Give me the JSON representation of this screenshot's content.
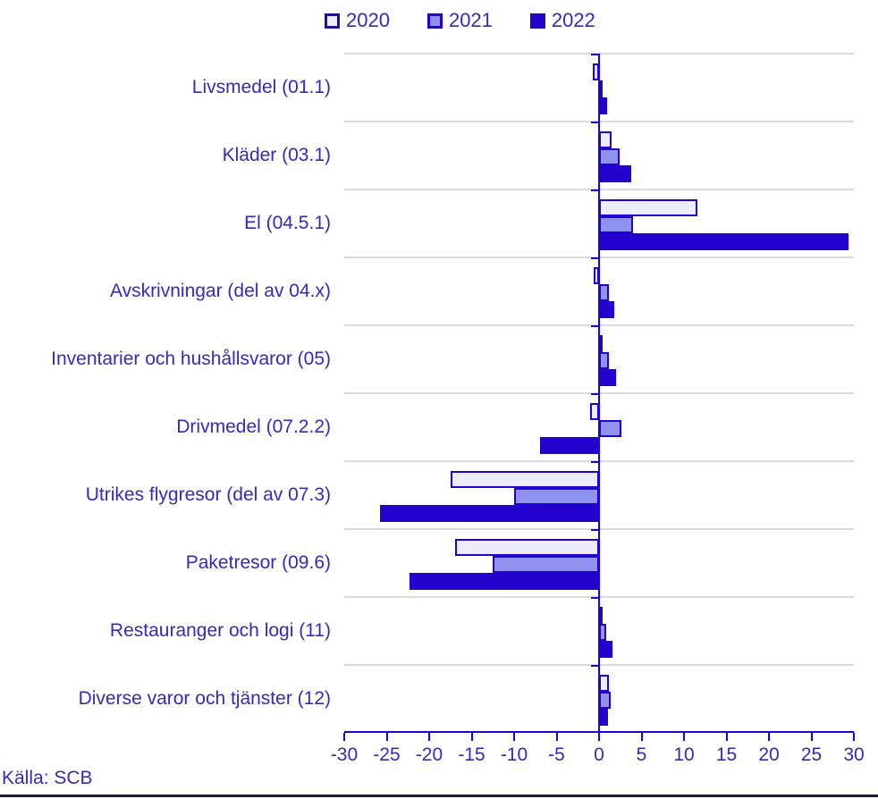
{
  "source": "Källa: SCB",
  "colors": {
    "accent_dark": "#2302cd",
    "series_2021_fill": "#8f92ee",
    "series_2020_fill": "#ecedfb",
    "text": "#3629bf",
    "gridline": "#d9d9d9",
    "bottom_rule": "#1a1a3e"
  },
  "chart_data": {
    "type": "bar",
    "orientation": "horizontal",
    "title": "",
    "xlabel": "",
    "ylabel": "",
    "xlim": [
      -30,
      30
    ],
    "xticks": [
      -30,
      -25,
      -20,
      -15,
      -10,
      -5,
      0,
      5,
      10,
      15,
      20,
      25,
      30
    ],
    "grid": "horizontal lines at category boundaries",
    "legend_position": "top",
    "categories": [
      "Livsmedel (01.1)",
      "Kläder (03.1)",
      "El (04.5.1)",
      "Avskrivningar (del av 04.x)",
      "Inventarier och hushållsvaror (05)",
      "Drivmedel (07.2.2)",
      "Utrikes flygresor (del av 07.3)",
      "Paketresor (09.6)",
      "Restauranger och logi (11)",
      "Diverse varor och tjänster (12)"
    ],
    "series": [
      {
        "name": "2020",
        "fill": "#ecedfb",
        "values": [
          -0.7,
          1.5,
          11.6,
          -0.6,
          0.2,
          -1.1,
          -17.5,
          -17.0,
          0.3,
          1.2
        ]
      },
      {
        "name": "2021",
        "fill": "#8f92ee",
        "values": [
          0.3,
          2.4,
          4.0,
          1.2,
          1.2,
          2.6,
          -10.0,
          -12.5,
          0.8,
          1.4
        ]
      },
      {
        "name": "2022",
        "fill": "#2302cd",
        "values": [
          0.9,
          3.8,
          29.4,
          1.8,
          2.0,
          -7.0,
          -25.8,
          -22.3,
          1.6,
          1.0
        ]
      }
    ]
  }
}
